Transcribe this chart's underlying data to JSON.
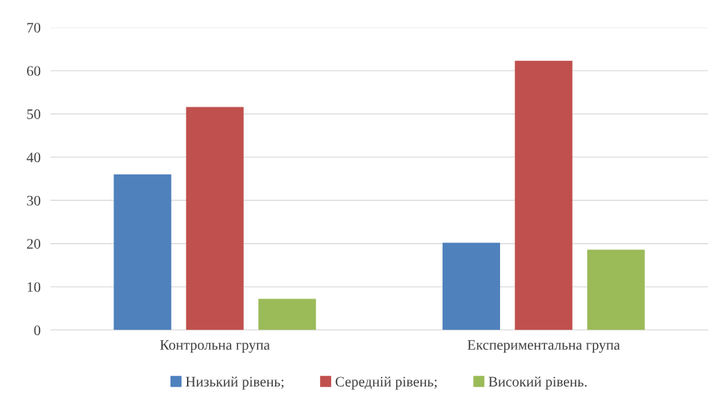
{
  "chart_data": {
    "type": "bar",
    "categories": [
      "Контрольна група",
      "Експериментальна група"
    ],
    "series": [
      {
        "name": "Низький рівень;",
        "color": "#4f81bd",
        "values": [
          36,
          20.2
        ]
      },
      {
        "name": "Середній рівень;",
        "color": "#c0504d",
        "values": [
          51.6,
          62.3
        ]
      },
      {
        "name": "Високий рівень.",
        "color": "#9bbb59",
        "values": [
          7.2,
          18.6
        ]
      }
    ],
    "ylim": [
      0,
      70
    ],
    "yticks": [
      0,
      10,
      20,
      30,
      40,
      50,
      60,
      70
    ],
    "grid": "y",
    "legend": "bottom"
  }
}
